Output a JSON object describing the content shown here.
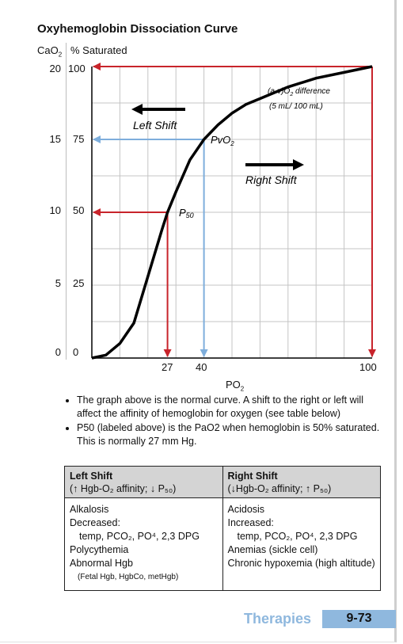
{
  "chart_data": {
    "type": "line",
    "title": "Oxyhemoglobin Dissociation Curve",
    "xlabel": "PO2",
    "ylabel_left": "CaO2",
    "ylabel_right": "% Saturated",
    "xlim": [
      0,
      100
    ],
    "ylim": [
      0,
      100
    ],
    "grid": true,
    "x_ticks": [
      "27",
      "40",
      "100"
    ],
    "y_ticks_cao2": [
      "20",
      "15",
      "10",
      "5",
      "0"
    ],
    "y_ticks_pct": [
      "100",
      "75",
      "50",
      "25",
      "0"
    ],
    "series": [
      {
        "name": "",
        "x": [
          0,
          5,
          10,
          15,
          20,
          25,
          27,
          30,
          35,
          40,
          45,
          50,
          55,
          60,
          70,
          80,
          90,
          100
        ],
        "y": [
          0,
          1,
          5,
          12,
          28,
          44,
          50,
          57,
          68,
          75,
          80,
          84,
          87,
          89,
          93,
          96,
          98,
          100
        ]
      }
    ],
    "markers": [
      {
        "label": "P50",
        "x": 27,
        "y": 50,
        "color": "#c8242b"
      },
      {
        "label": "PvO2",
        "x": 40,
        "y": 75,
        "color": "#7eaedc"
      },
      {
        "label": "",
        "x": 100,
        "y": 100,
        "color": "#c8242b"
      }
    ],
    "annotations": {
      "left_shift": "Left Shift",
      "right_shift": "Right Shift",
      "av_difference": "(a-v)O2 difference",
      "av_value": "(5 mL/ 100 mL)",
      "p50": "P50",
      "pvo2": "PvO2"
    }
  },
  "notes": [
    "The graph above is the normal curve.  A shift to the right or left will affect the affinity of hemoglobin for oxygen (see table below)",
    "P50 (labeled above) is the PaO2 when hemoglobin is 50% saturated. This is normally 27 mm Hg."
  ],
  "table": {
    "left_header": "Left Shift",
    "left_sub": "(↑ Hgb-O₂ affinity; ↓ P₅₀)",
    "right_header": "Right Shift",
    "right_sub": "(↓Hgb-O₂ affinity; ↑ P₅₀)",
    "left_rows": [
      "Alkalosis",
      "Decreased:",
      "temp, PCO₂, PO⁴, 2,3 DPG",
      "Polycythemia",
      "Abnormal Hgb",
      "(Fetal Hgb, HgbCo, metHgb)"
    ],
    "right_rows": [
      "Acidosis",
      "Increased:",
      "temp, PCO₂, PO⁴, 2,3 DPG",
      "Anemias (sickle cell)",
      "Chronic hypoxemia (high altitude)"
    ]
  },
  "footer": {
    "section": "Therapies",
    "page": "9-73"
  },
  "colors": {
    "red": "#c8242b",
    "blue": "#7eaedc",
    "grid": "#c4c4c4",
    "footer": "#8fb8de"
  }
}
